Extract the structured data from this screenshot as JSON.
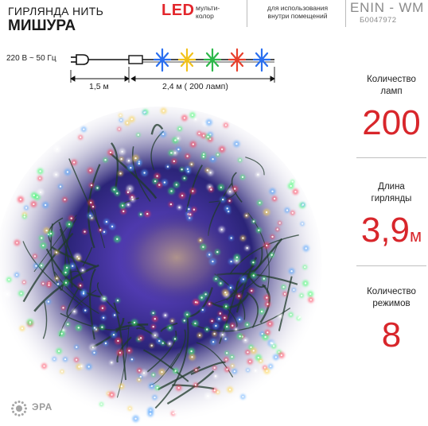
{
  "header": {
    "title_line1": "ГИРЛЯНДА НИТЬ",
    "title_line2": "МИШУРА",
    "led_label": "LED",
    "multicolor_line1": "мульти-",
    "multicolor_line2": "колор",
    "indoor_line1": "для использования",
    "indoor_line2": "внутри помещений",
    "model": "ENIN - WM",
    "sku": "Б0047972"
  },
  "wiring_diagram": {
    "voltage": "220 В ~ 50 Гц",
    "lead_length": "1,5 м",
    "lit_length": "2,4  м ( 200 ламп)",
    "bulb_colors": [
      "#2a6ff0",
      "#f2c21b",
      "#2db84a",
      "#e8402c",
      "#2a6ff0"
    ]
  },
  "specs": [
    {
      "label_line1": "Количество",
      "label_line2": "ламп",
      "value": "200",
      "unit": ""
    },
    {
      "label_line1": "Длина",
      "label_line2": "гирлянды",
      "value": "3,9",
      "unit": "м"
    },
    {
      "label_line1": "Количество",
      "label_line2": "режимов",
      "value": "8",
      "unit": ""
    }
  ],
  "brand": {
    "name": "ЭРА",
    "icon": "sun-logo-icon"
  },
  "photo": {
    "subject": "garland-photo",
    "colors": {
      "background": "#2b2478",
      "glow": "#6a4bd8",
      "wire": "#1f3a2a",
      "lamp_red": "#ff3b55",
      "lamp_green": "#3dff6a",
      "lamp_blue": "#4fa3ff",
      "lamp_yellow": "#ffd54a",
      "lamp_white": "#ffffff"
    }
  }
}
